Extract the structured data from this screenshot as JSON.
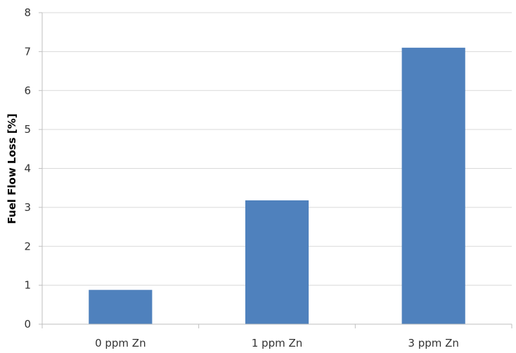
{
  "chart_data": {
    "type": "bar",
    "title": "",
    "xlabel": "",
    "ylabel": "Fuel Flow Loss [%]",
    "categories": [
      "0 ppm Zn",
      "1 ppm Zn",
      "3 ppm Zn"
    ],
    "values": [
      0.88,
      3.18,
      7.1
    ],
    "ylim": [
      0,
      8
    ],
    "yticks": [
      "0",
      "1",
      "2",
      "3",
      "4",
      "5",
      "6",
      "7",
      "8"
    ],
    "grid": true,
    "legend": "none",
    "bar_color": "#4F81BD",
    "grid_color": "#D9D9D9",
    "axis_color": "#BFBFBF"
  }
}
